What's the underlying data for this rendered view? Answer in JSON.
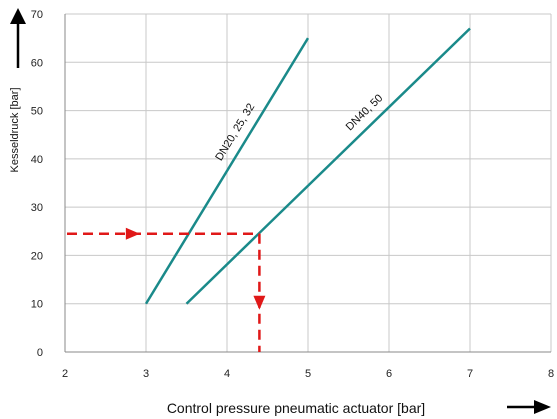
{
  "chart_data": {
    "type": "line",
    "xlabel": "Control pressure pneumatic actuator [bar]",
    "ylabel": "Kesseldruck [bar]",
    "xlim": [
      2,
      8
    ],
    "ylim": [
      0,
      70
    ],
    "xticks": [
      2,
      3,
      4,
      5,
      6,
      7,
      8
    ],
    "yticks": [
      0,
      10,
      20,
      30,
      40,
      50,
      60,
      70
    ],
    "grid": true,
    "legend": "none",
    "colors": {
      "series": "#1a8a8a",
      "annotation": "#e01818",
      "grid": "#c8c8c8"
    },
    "series": [
      {
        "name": "DN20, 25, 32",
        "x": [
          3.0,
          5.0
        ],
        "y": [
          10,
          65
        ]
      },
      {
        "name": "DN40, 50",
        "x": [
          3.5,
          7.0
        ],
        "y": [
          10,
          67
        ]
      }
    ],
    "annotation": {
      "style": "dashed-arrows",
      "start_x": 2.0,
      "y": 24.5,
      "x": 4.4,
      "end_y": 0
    }
  }
}
